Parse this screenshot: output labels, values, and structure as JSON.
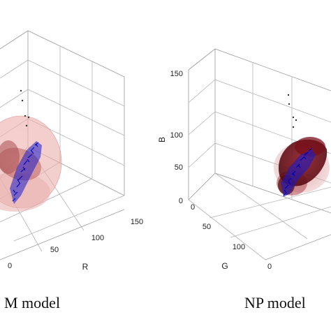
{
  "chart_data": [
    {
      "type": "scatter",
      "subtype": "3d-scatter-with-density-isosurfaces",
      "caption": "M model",
      "x_axis": {
        "label": "R",
        "ticks": [
          "0",
          "50",
          "100",
          "150"
        ]
      },
      "y_axis": {
        "label": "",
        "ticks": []
      },
      "z_axis": {
        "label": "",
        "ticks": []
      },
      "series": [
        {
          "marker": "x",
          "color": "#1010cc"
        }
      ],
      "surface_color": "#d98888",
      "grid": true
    },
    {
      "type": "scatter",
      "subtype": "3d-scatter-with-density-isosurfaces",
      "caption": "NP model",
      "x_axis": {
        "label": "G",
        "ticks": [
          "0",
          "50",
          "100"
        ]
      },
      "y_axis": {
        "label": "",
        "ticks": []
      },
      "z_axis": {
        "label": "B",
        "ticks": [
          "0",
          "50",
          "100",
          "150"
        ]
      },
      "series": [
        {
          "marker": "x",
          "color": "#1010cc"
        }
      ],
      "surface_color": "#6a0a14",
      "grid": true
    }
  ]
}
